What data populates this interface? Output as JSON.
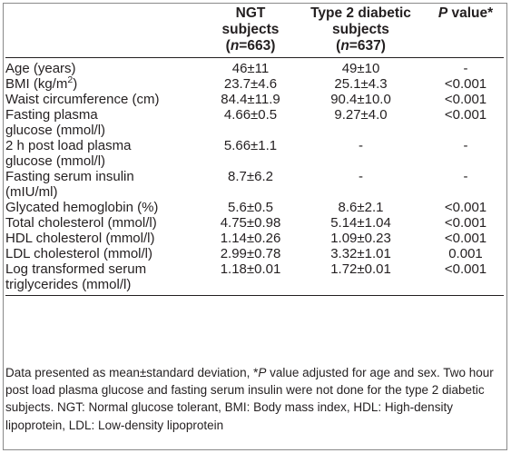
{
  "table": {
    "headers": [
      {
        "line1": "",
        "line2": "",
        "n_prefix": "",
        "n_italic": "",
        "n_value": ""
      },
      {
        "line1": "NGT",
        "line2": "subjects",
        "n_prefix": "(",
        "n_italic": "n",
        "n_value": "=663)"
      },
      {
        "line1": "Type 2 diabetic",
        "line2": "subjects",
        "n_prefix": "(",
        "n_italic": "n",
        "n_value": "=637)"
      },
      {
        "p_italic": "P",
        "p_rest": " value*"
      }
    ],
    "rows": [
      {
        "label_line1": "Age (years)",
        "label_line2": "",
        "ngt": "46±11",
        "t2d": "49±10",
        "p": "-"
      },
      {
        "label_pre": "BMI (kg/m",
        "label_sup": "2",
        "label_post": ")",
        "ngt": "23.7±4.6",
        "t2d": "25.1±4.3",
        "p": "<0.001"
      },
      {
        "label_line1": "Waist circumference (cm)",
        "label_line2": "",
        "ngt": "84.4±11.9",
        "t2d": "90.4±10.0",
        "p": "<0.001"
      },
      {
        "label_line1": "Fasting plasma",
        "label_line2": "glucose (mmol/l)",
        "ngt": "4.66±0.5",
        "t2d": "9.27±4.0",
        "p": "<0.001"
      },
      {
        "label_line1": "2 h post load plasma",
        "label_line2": "glucose (mmol/l)",
        "ngt": "5.66±1.1",
        "t2d": "-",
        "p": "-"
      },
      {
        "label_line1": "Fasting serum insulin",
        "label_line2": "(mIU/ml)",
        "ngt": "8.7±6.2",
        "t2d": "-",
        "p": "-"
      },
      {
        "label_line1": "Glycated hemoglobin (%)",
        "label_line2": "",
        "ngt": "5.6±0.5",
        "t2d": "8.6±2.1",
        "p": "<0.001"
      },
      {
        "label_line1": "Total cholesterol (mmol/l)",
        "label_line2": "",
        "ngt": "4.75±0.98",
        "t2d": "5.14±1.04",
        "p": "<0.001"
      },
      {
        "label_line1": "HDL cholesterol (mmol/l)",
        "label_line2": "",
        "ngt": "1.14±0.26",
        "t2d": "1.09±0.23",
        "p": "<0.001"
      },
      {
        "label_line1": "LDL cholesterol (mmol/l)",
        "label_line2": "",
        "ngt": "2.99±0.78",
        "t2d": "3.32±1.01",
        "p": "0.001"
      },
      {
        "label_line1": "Log transformed serum",
        "label_line2": "triglycerides (mmol/l)",
        "ngt": "1.18±0.01",
        "t2d": "1.72±0.01",
        "p": "<0.001"
      }
    ]
  },
  "footnote": {
    "part1": "Data presented as mean±standard deviation, *",
    "part1_italic": "P",
    "part2": " value adjusted for age and sex. Two hour post load plasma glucose and fasting serum insulin were not done for the type 2 diabetic subjects. NGT: Normal glucose tolerant, BMI: Body mass index, HDL: High-density lipoprotein, LDL: Low-density lipoprotein"
  }
}
